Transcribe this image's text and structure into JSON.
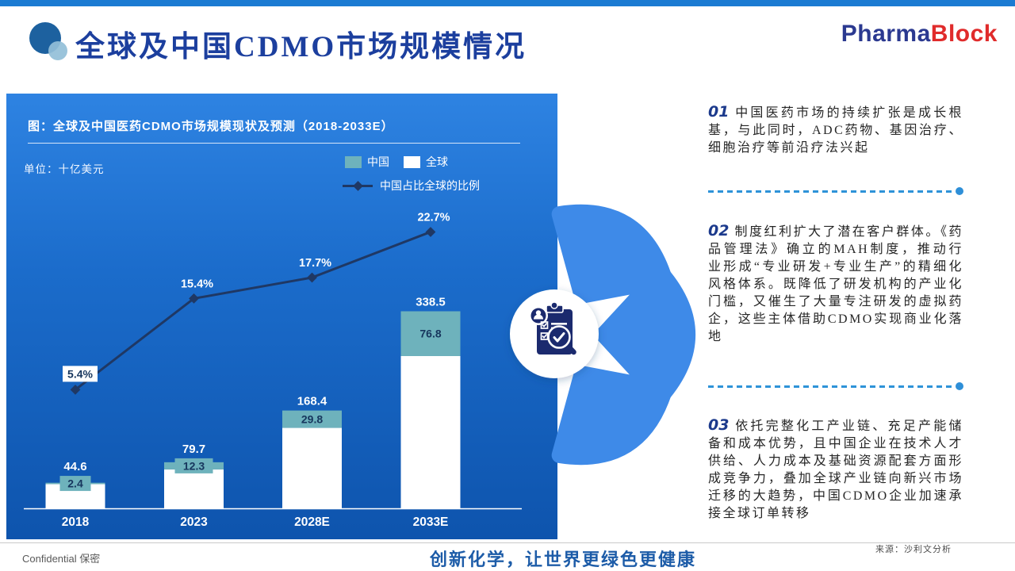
{
  "header": {
    "title": "全球及中国CDMO市场规模情况",
    "logo": {
      "part1": "Pharma",
      "part2": "Block"
    }
  },
  "chart_panel": {
    "unit_label": "单位：十亿美元"
  },
  "chart_data": {
    "type": "bar",
    "combo_line": true,
    "title": "图：全球及中国医药CDMO市场规模现状及预测（2018-2033E）",
    "ylabel": "十亿美元",
    "categories": [
      "2018",
      "2023",
      "2028E",
      "2033E"
    ],
    "series": [
      {
        "name": "中国",
        "type": "bar",
        "color": "#6eb2bc",
        "values": [
          2.4,
          12.3,
          29.8,
          76.8
        ]
      },
      {
        "name": "全球",
        "type": "bar",
        "color": "#ffffff",
        "values": [
          44.6,
          79.7,
          168.4,
          338.5
        ]
      },
      {
        "name": "中国占比全球的比例",
        "type": "line",
        "color": "#1f3864",
        "unit": "%",
        "values": [
          5.4,
          15.4,
          17.7,
          22.7
        ]
      }
    ],
    "legend_position": "top-right",
    "grid": false
  },
  "points": [
    {
      "num": "01",
      "text": "中国医药市场的持续扩张是成长根基，与此同时，ADC药物、基因治疗、细胞治疗等前沿疗法兴起"
    },
    {
      "num": "02",
      "text": "制度红利扩大了潜在客户群体。《药品管理法》确立的MAH制度，推动行业形成“专业研发+专业生产”的精细化风格体系。既降低了研发机构的产业化门槛，又催生了大量专注研发的虚拟药企，这些主体借助CDMO实现商业化落地"
    },
    {
      "num": "03",
      "text": "依托完整化工产业链、充足产能储备和成本优势，且中国企业在技术人才供给、人力成本及基础资源配套方面形成竞争力，叠加全球产业链向新兴市场迁移的大趋势，中国CDMO企业加速承接全球订单转移"
    }
  ],
  "footer": {
    "confidential": "Confidential 保密",
    "slogan": "创新化学，让世界更绿色更健康",
    "source": "来源：沙利文分析"
  },
  "colors": {
    "panel_top": "#2e83e2",
    "panel_bottom": "#0e54ad",
    "china_bar": "#6eb2bc",
    "global_bar": "#ffffff",
    "ratio_line": "#1f3864",
    "accent_dashed": "#2e93d8",
    "title_blue": "#1c3f9e",
    "logo_blue": "#2b3990",
    "logo_red": "#e02b2b"
  }
}
